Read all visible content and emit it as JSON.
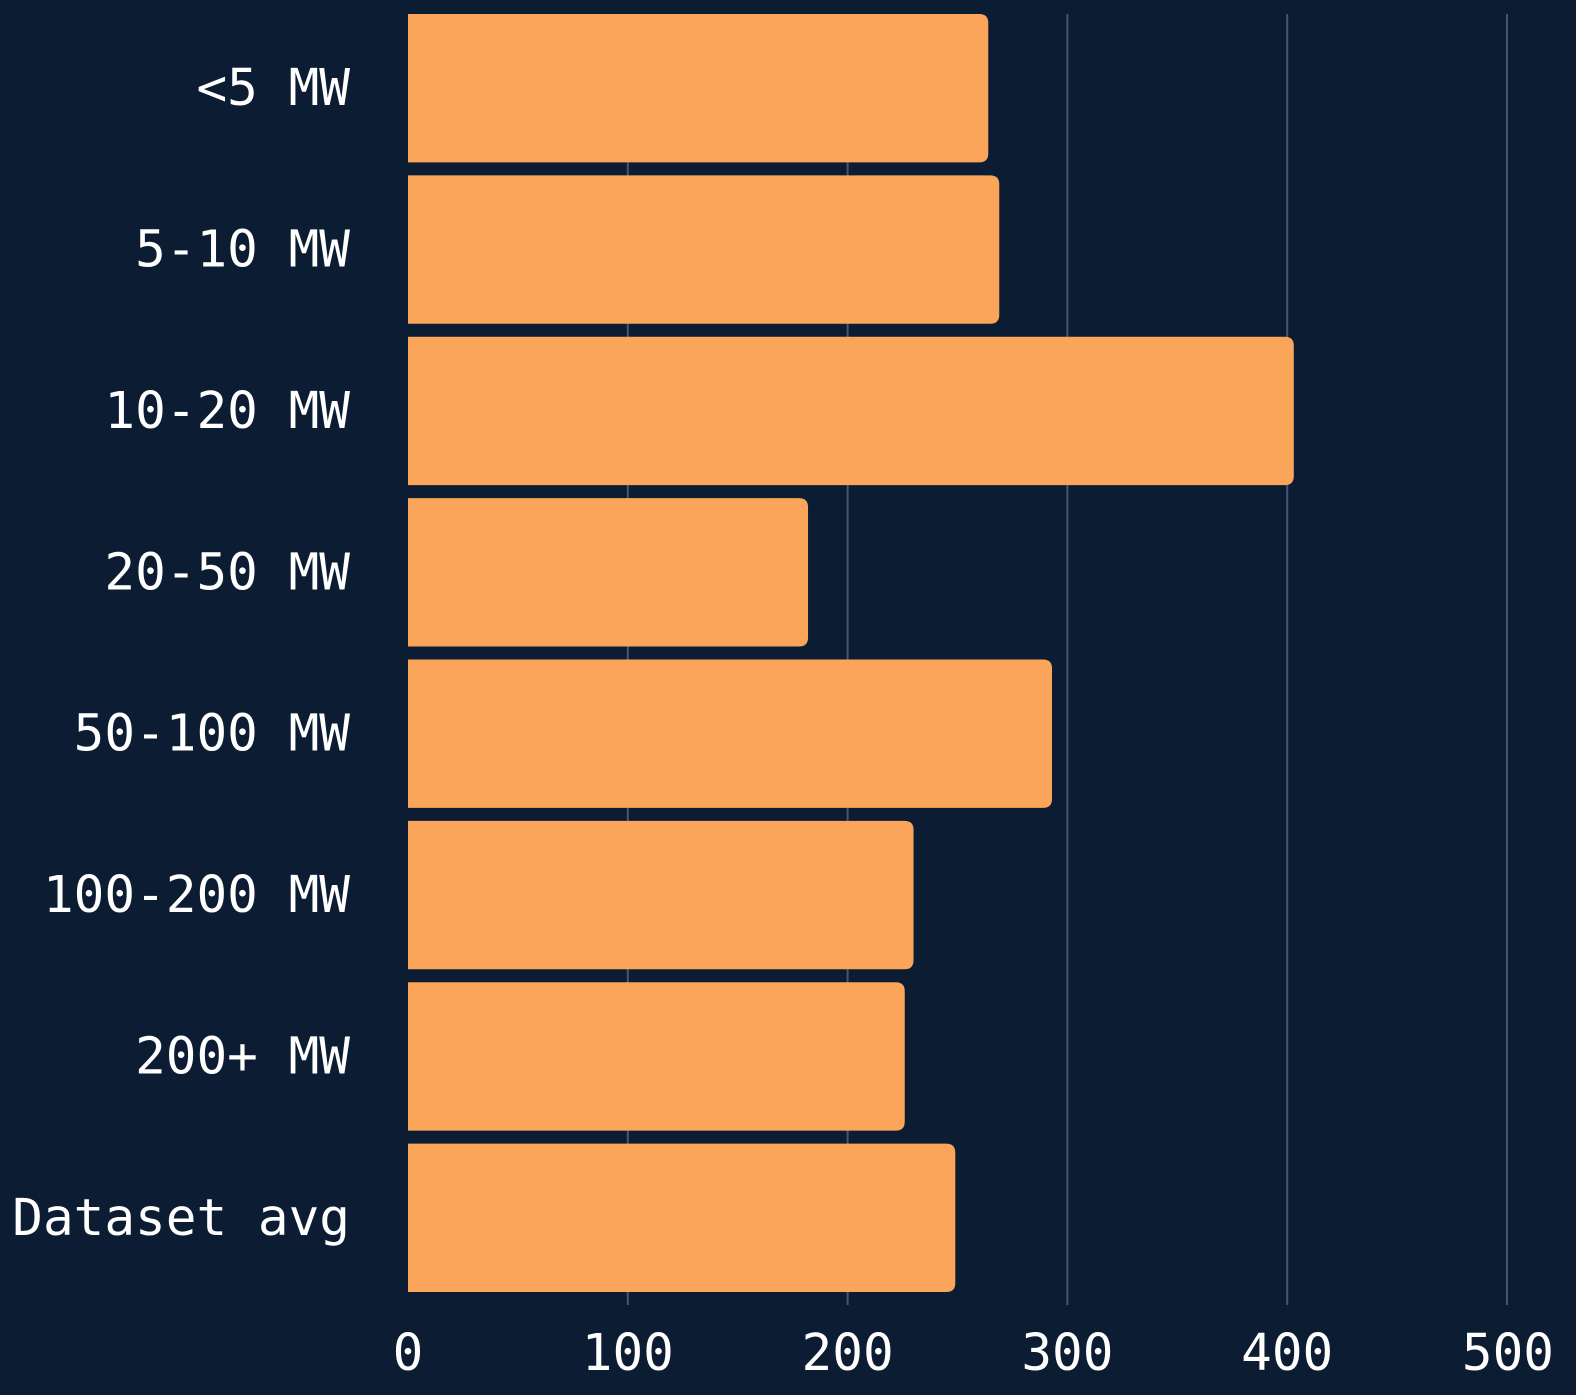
{
  "chart_data": {
    "type": "bar",
    "orientation": "horizontal",
    "title": "",
    "xlabel": "",
    "ylabel": "",
    "categories": [
      "<5 MW",
      "5-10 MW",
      "10-20 MW",
      "20-50 MW",
      "50-100 MW",
      "100-200 MW",
      "200+ MW",
      "Dataset avg"
    ],
    "values": [
      264,
      269,
      403,
      182,
      293,
      230,
      226,
      249
    ],
    "xlim": [
      0,
      500
    ],
    "xticks": [
      "0",
      "100",
      "200",
      "300",
      "400",
      "500"
    ],
    "grid": "vertical",
    "legend": "none",
    "colors": {
      "background": "#0b1c33",
      "bar": "#fba55a",
      "grid": "#45566f",
      "text": "#ffffff"
    }
  }
}
